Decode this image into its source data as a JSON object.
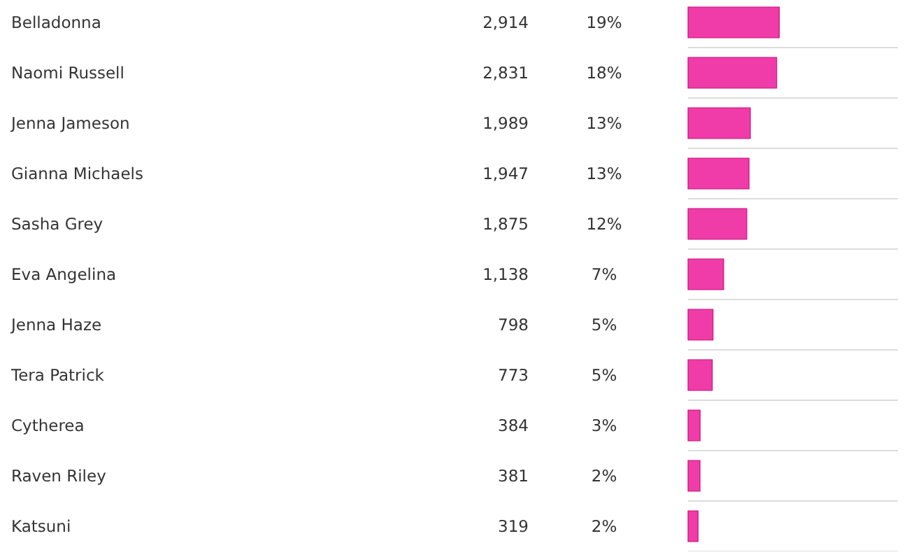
{
  "chart_data": {
    "type": "bar",
    "orientation": "horizontal",
    "categories": [
      "Belladonna",
      "Naomi Russell",
      "Jenna Jameson",
      "Gianna Michaels",
      "Sasha Grey",
      "Eva Angelina",
      "Jenna Haze",
      "Tera Patrick",
      "Cytherea",
      "Raven Riley",
      "Katsuni"
    ],
    "values": [
      2914,
      2831,
      1989,
      1947,
      1875,
      1138,
      798,
      773,
      384,
      381,
      319
    ],
    "value_labels": [
      "2,914",
      "2,831",
      "1,989",
      "1,947",
      "1,875",
      "1,138",
      "798",
      "773",
      "384",
      "381",
      "319"
    ],
    "annotations": [
      "19%",
      "18%",
      "13%",
      "13%",
      "12%",
      "7%",
      "5%",
      "5%",
      "3%",
      "2%",
      "2%"
    ],
    "color": "#f03ca8",
    "grid": "y"
  }
}
